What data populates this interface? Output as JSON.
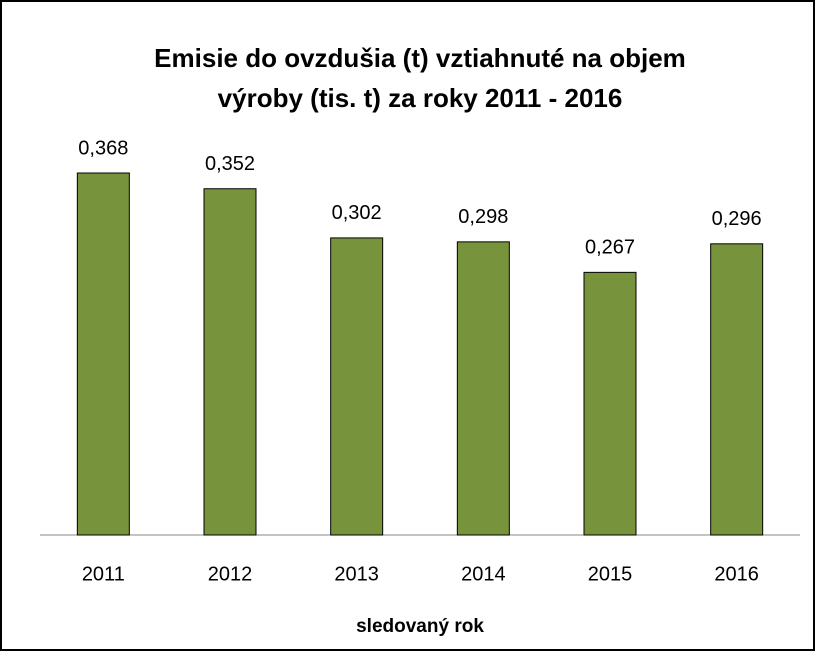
{
  "chart_data": {
    "type": "bar",
    "title": [
      "Emisie do ovzdušia (t) vztiahnuté na objem",
      "výroby (tis. t) za roky 2011 - 2016"
    ],
    "categories": [
      "2011",
      "2012",
      "2013",
      "2014",
      "2015",
      "2016"
    ],
    "values": [
      0.368,
      0.352,
      0.302,
      0.298,
      0.267,
      0.296
    ],
    "value_labels": [
      "0,368",
      "0,352",
      "0,302",
      "0,298",
      "0,267",
      "0,296"
    ],
    "color": "#77933c",
    "x_label": "sledovaný rok"
  }
}
